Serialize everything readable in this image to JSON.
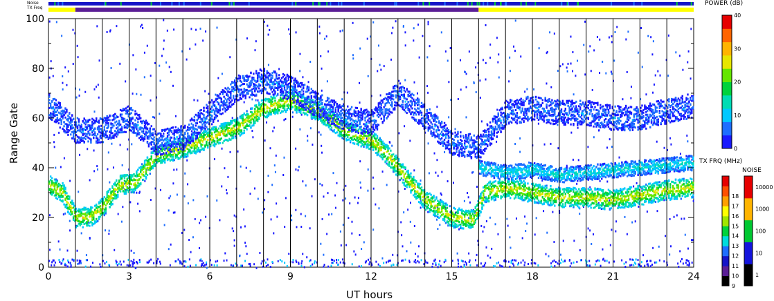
{
  "chart_data": {
    "type": "heatmap",
    "xlabel": "UT hours",
    "ylabel": "Range Gate",
    "xlim": [
      0,
      24
    ],
    "ylim": [
      0,
      100
    ],
    "x_ticks": [
      "0",
      "3",
      "6",
      "9",
      "12",
      "15",
      "18",
      "21",
      "24"
    ],
    "y_ticks": [
      "0",
      "20",
      "40",
      "60",
      "80",
      "100"
    ],
    "grid": "vertical hour lines",
    "status_bars": {
      "noise_label": "Noise",
      "txfreq_label": "TX Freq",
      "txfreq_segments": [
        {
          "from": 0,
          "to": 1,
          "color": "#ffff00"
        },
        {
          "from": 1,
          "to": 16,
          "color": "#5a1e96"
        },
        {
          "from": 16,
          "to": 24,
          "color": "#ffff00"
        }
      ]
    },
    "power_colorbar": {
      "title": "POWER (dB)",
      "ticks": [
        "0",
        "10",
        "20",
        "30",
        "40"
      ],
      "colors": [
        "#1a1aff",
        "#1e6eff",
        "#00c8ff",
        "#00dcb4",
        "#00d23c",
        "#64e600",
        "#e6e600",
        "#ffb400",
        "#ff6400",
        "#e60000"
      ]
    },
    "txfreq_colorbar": {
      "title": "TX FRQ (MHz)",
      "labels": [
        "9",
        "10",
        "11",
        "12",
        "13",
        "14",
        "15",
        "16",
        "17",
        "18"
      ],
      "colors": [
        "#000000",
        "#5a1e96",
        "#1414c8",
        "#1e6eff",
        "#00dcdc",
        "#00d23c",
        "#a0e600",
        "#ffff00",
        "#ffa000",
        "#ff5000",
        "#e60000"
      ]
    },
    "noise_colorbar": {
      "title": "NOISE",
      "labels": [
        "1",
        "10",
        "100",
        "1000",
        "10000"
      ],
      "colors": [
        "#000000",
        "#1414dc",
        "#00c832",
        "#ffb400",
        "#e60000"
      ]
    },
    "echo_bands": [
      {
        "name": "near-range ground scatter",
        "points": [
          [
            0,
            33
          ],
          [
            0.5,
            30
          ],
          [
            1,
            20
          ],
          [
            1.5,
            20
          ],
          [
            2,
            24
          ],
          [
            2.6,
            33
          ],
          [
            3.2,
            34
          ],
          [
            4,
            45
          ],
          [
            5,
            48
          ],
          [
            6,
            52
          ],
          [
            7,
            56
          ],
          [
            8,
            64
          ],
          [
            9,
            67
          ],
          [
            10,
            63
          ],
          [
            11,
            55
          ],
          [
            12,
            51
          ],
          [
            12.6,
            45
          ],
          [
            13.2,
            37
          ],
          [
            14,
            27
          ],
          [
            15,
            20
          ],
          [
            15.8,
            19
          ],
          [
            16.2,
            30
          ],
          [
            17,
            32
          ],
          [
            18,
            30
          ],
          [
            19,
            28
          ],
          [
            20,
            28
          ],
          [
            21,
            27
          ],
          [
            22,
            29
          ],
          [
            23,
            31
          ],
          [
            24,
            32
          ]
        ],
        "width": 4,
        "power_db": 26
      },
      {
        "name": "far-range scatter",
        "points": [
          [
            0,
            65
          ],
          [
            1,
            55
          ],
          [
            2,
            55
          ],
          [
            3,
            60
          ],
          [
            4,
            50
          ],
          [
            5,
            52
          ],
          [
            6,
            62
          ],
          [
            7,
            72
          ],
          [
            8,
            75
          ],
          [
            9,
            72
          ],
          [
            10,
            65
          ],
          [
            11,
            60
          ],
          [
            12,
            58
          ],
          [
            13,
            70
          ],
          [
            14,
            60
          ],
          [
            15,
            50
          ],
          [
            16,
            48
          ],
          [
            17,
            62
          ],
          [
            18,
            64
          ],
          [
            19,
            62
          ],
          [
            20,
            62
          ],
          [
            21,
            60
          ],
          [
            22,
            60
          ],
          [
            23,
            63
          ],
          [
            24,
            65
          ]
        ],
        "width": 5,
        "power_db": 6
      },
      {
        "name": "mid-range scatter",
        "points": [
          [
            16,
            40
          ],
          [
            17,
            38
          ],
          [
            18,
            39
          ],
          [
            19,
            37
          ],
          [
            20,
            38
          ],
          [
            21,
            39
          ],
          [
            22,
            40
          ],
          [
            23,
            41
          ],
          [
            24,
            42
          ]
        ],
        "width": 3,
        "power_db": 13
      }
    ]
  }
}
